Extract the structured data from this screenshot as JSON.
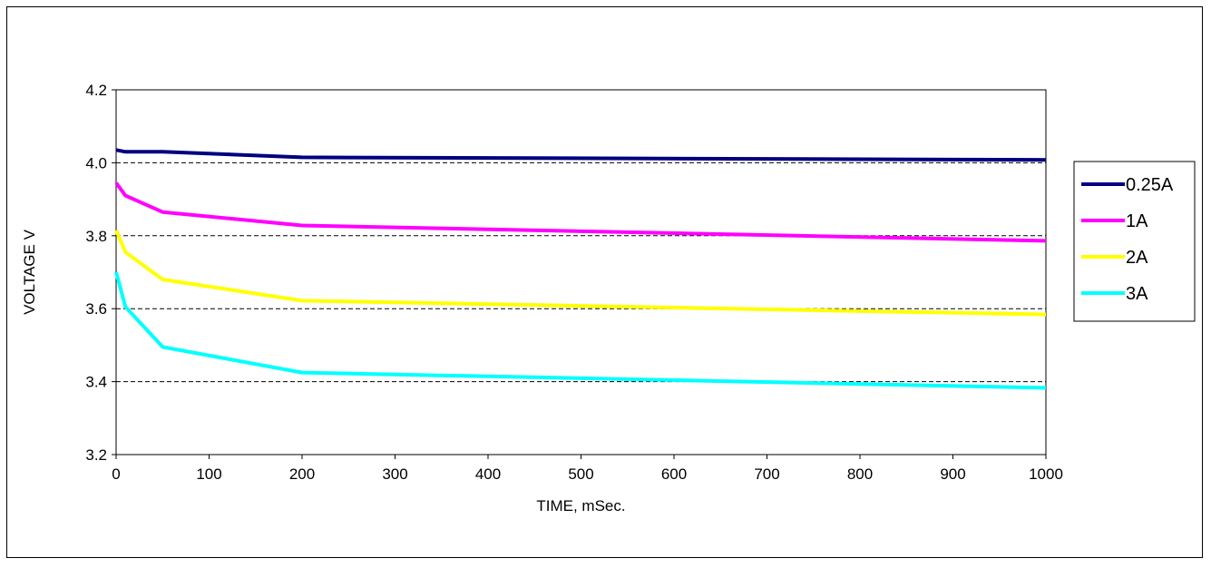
{
  "chart_data": {
    "type": "line",
    "title": "",
    "xlabel": "TIME,  mSec.",
    "ylabel": "VOLTAGE  V",
    "xlim": [
      0,
      1000
    ],
    "ylim": [
      3.2,
      4.2
    ],
    "x_ticks": [
      "0",
      "100",
      "200",
      "300",
      "400",
      "500",
      "600",
      "700",
      "800",
      "900",
      "1000"
    ],
    "y_ticks": [
      "3.2",
      "3.4",
      "3.6",
      "3.8",
      "4.0",
      "4.2"
    ],
    "grid": "horizontal-dashed",
    "legend_position": "right",
    "x": [
      0,
      10,
      50,
      200,
      1000
    ],
    "series": [
      {
        "name": "0.25A",
        "color": "#000080",
        "values": [
          4.035,
          4.03,
          4.03,
          4.015,
          4.008
        ]
      },
      {
        "name": "1A",
        "color": "#ff00ff",
        "values": [
          3.945,
          3.91,
          3.865,
          3.828,
          3.786
        ]
      },
      {
        "name": "2A",
        "color": "#ffff00",
        "values": [
          3.815,
          3.755,
          3.68,
          3.622,
          3.584
        ]
      },
      {
        "name": "3A",
        "color": "#00ffff",
        "values": [
          3.7,
          3.605,
          3.495,
          3.425,
          3.383
        ]
      }
    ]
  }
}
